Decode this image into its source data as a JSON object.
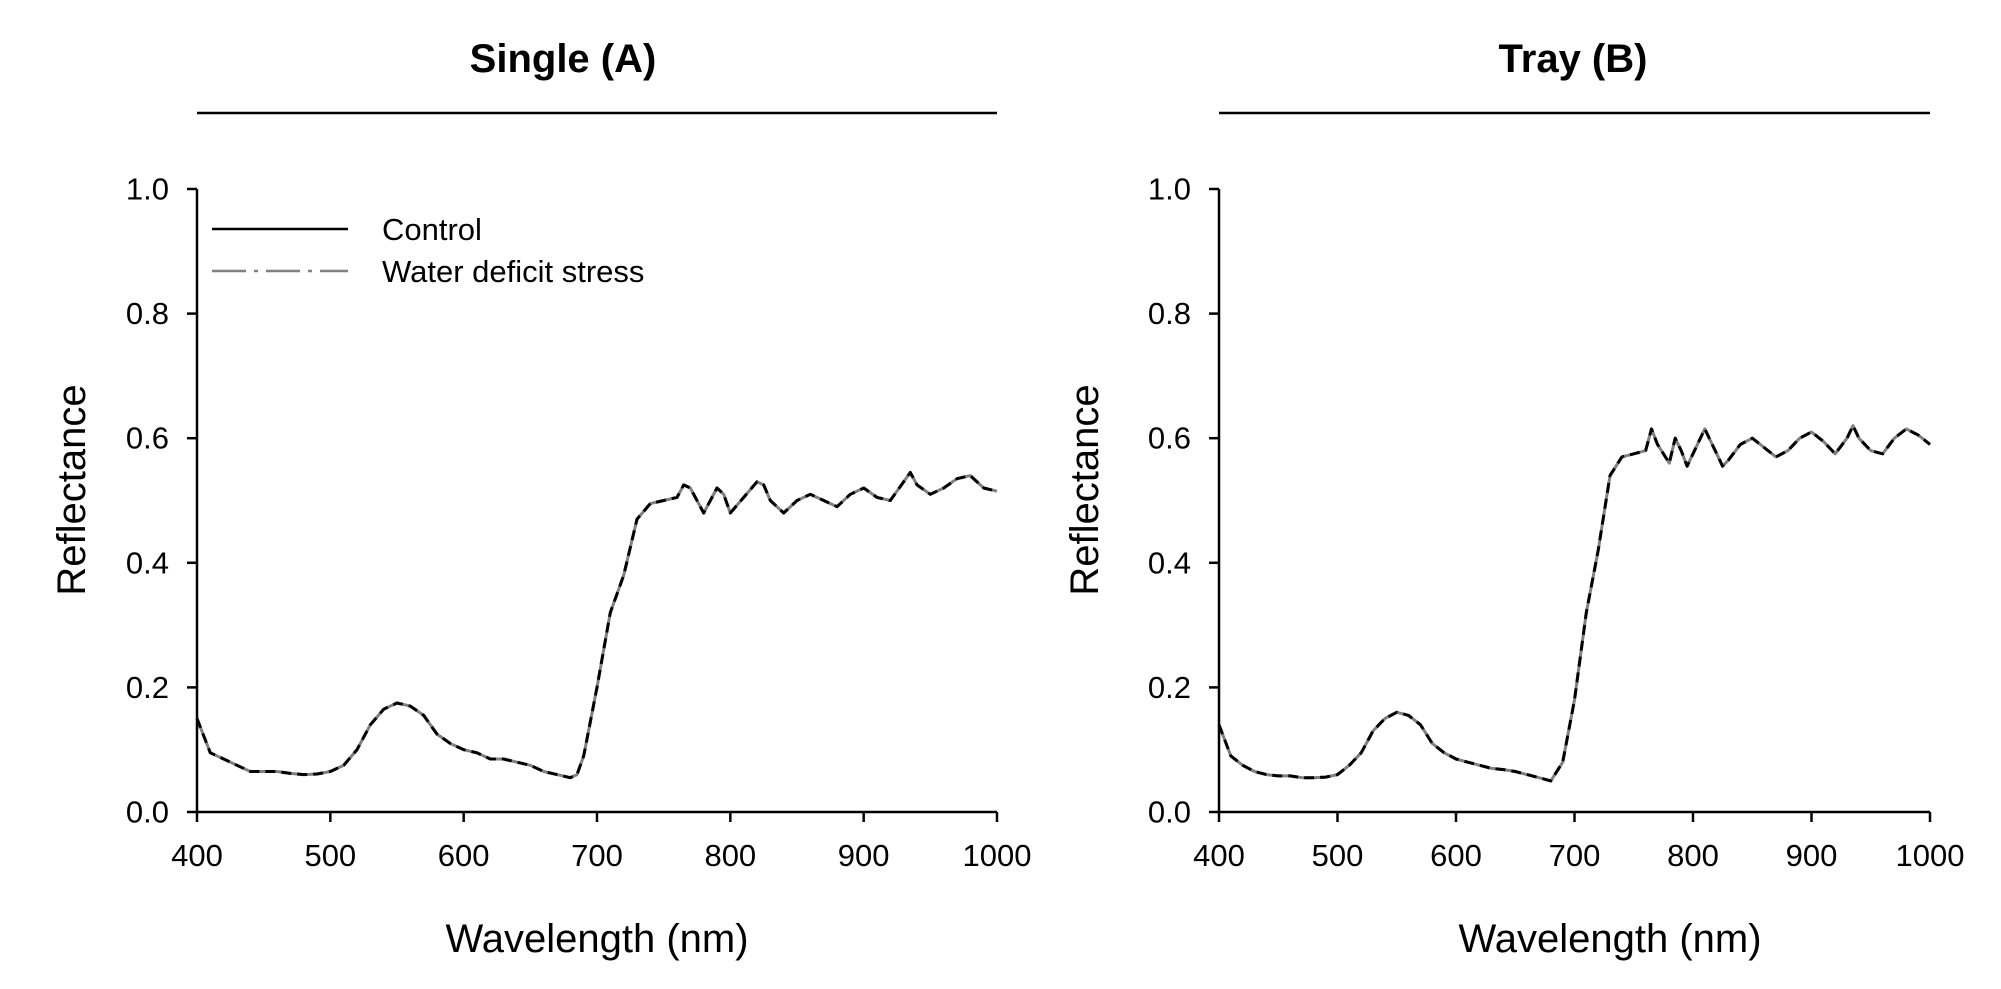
{
  "chart_data": [
    {
      "type": "line",
      "title": "Single (A)",
      "xlabel": "Wavelength (nm)",
      "ylabel": "Reflectance",
      "xlim": [
        400,
        1000
      ],
      "ylim": [
        0.0,
        1.0
      ],
      "x_ticks": [
        "400",
        "500",
        "600",
        "700",
        "800",
        "900",
        "1000"
      ],
      "y_ticks": [
        "0.0",
        "0.2",
        "0.4",
        "0.6",
        "0.8",
        "1.0"
      ],
      "legend": {
        "position": "top-left",
        "entries": [
          "Control",
          "Water deficit stress"
        ]
      },
      "series": [
        {
          "name": "Control",
          "color": "#000000",
          "x": [
            400,
            410,
            420,
            430,
            440,
            450,
            460,
            470,
            480,
            490,
            500,
            510,
            520,
            530,
            540,
            550,
            560,
            570,
            580,
            590,
            600,
            610,
            620,
            630,
            640,
            650,
            660,
            670,
            680,
            685,
            690,
            700,
            710,
            720,
            730,
            740,
            750,
            760,
            765,
            770,
            780,
            790,
            795,
            800,
            810,
            820,
            825,
            830,
            840,
            850,
            860,
            870,
            880,
            890,
            900,
            910,
            920,
            930,
            935,
            940,
            950,
            960,
            970,
            980,
            990,
            1000
          ],
          "y": [
            0.15,
            0.095,
            0.085,
            0.075,
            0.065,
            0.065,
            0.065,
            0.062,
            0.06,
            0.061,
            0.065,
            0.075,
            0.1,
            0.14,
            0.165,
            0.175,
            0.17,
            0.155,
            0.125,
            0.11,
            0.1,
            0.095,
            0.085,
            0.085,
            0.08,
            0.075,
            0.065,
            0.06,
            0.055,
            0.06,
            0.09,
            0.2,
            0.32,
            0.38,
            0.47,
            0.495,
            0.5,
            0.505,
            0.525,
            0.52,
            0.48,
            0.52,
            0.51,
            0.48,
            0.505,
            0.53,
            0.525,
            0.5,
            0.48,
            0.5,
            0.51,
            0.5,
            0.49,
            0.51,
            0.52,
            0.505,
            0.5,
            0.53,
            0.545,
            0.525,
            0.51,
            0.52,
            0.535,
            0.54,
            0.52,
            0.515
          ]
        },
        {
          "name": "Water deficit stress",
          "color": "#808080",
          "x": [
            400,
            410,
            420,
            430,
            440,
            450,
            460,
            470,
            480,
            490,
            500,
            510,
            520,
            530,
            540,
            550,
            560,
            570,
            580,
            590,
            600,
            610,
            620,
            630,
            640,
            650,
            660,
            670,
            680,
            685,
            690,
            700,
            710,
            720,
            730,
            740,
            750,
            760,
            765,
            770,
            780,
            790,
            795,
            800,
            810,
            820,
            825,
            830,
            840,
            850,
            860,
            870,
            880,
            890,
            900,
            910,
            920,
            930,
            935,
            940,
            950,
            960,
            970,
            980,
            990,
            1000
          ],
          "y": [
            0.15,
            0.095,
            0.085,
            0.075,
            0.065,
            0.065,
            0.065,
            0.062,
            0.06,
            0.061,
            0.065,
            0.075,
            0.1,
            0.14,
            0.165,
            0.175,
            0.17,
            0.155,
            0.125,
            0.11,
            0.1,
            0.095,
            0.085,
            0.085,
            0.08,
            0.075,
            0.065,
            0.06,
            0.055,
            0.06,
            0.09,
            0.2,
            0.32,
            0.38,
            0.47,
            0.495,
            0.5,
            0.505,
            0.525,
            0.52,
            0.48,
            0.52,
            0.51,
            0.48,
            0.505,
            0.53,
            0.525,
            0.5,
            0.48,
            0.5,
            0.51,
            0.5,
            0.49,
            0.51,
            0.52,
            0.505,
            0.5,
            0.53,
            0.545,
            0.525,
            0.51,
            0.52,
            0.535,
            0.54,
            0.52,
            0.515
          ]
        }
      ]
    },
    {
      "type": "line",
      "title": "Tray (B)",
      "xlabel": "Wavelength (nm)",
      "ylabel": "Reflectance",
      "xlim": [
        400,
        1000
      ],
      "ylim": [
        0.0,
        1.0
      ],
      "x_ticks": [
        "400",
        "500",
        "600",
        "700",
        "800",
        "900",
        "1000"
      ],
      "y_ticks": [
        "0.0",
        "0.2",
        "0.4",
        "0.6",
        "0.8",
        "1.0"
      ],
      "legend": null,
      "series": [
        {
          "name": "Control",
          "color": "#000000",
          "x": [
            400,
            410,
            420,
            430,
            440,
            450,
            460,
            470,
            480,
            490,
            500,
            510,
            520,
            530,
            540,
            550,
            560,
            570,
            580,
            590,
            600,
            610,
            620,
            630,
            640,
            650,
            660,
            670,
            680,
            690,
            700,
            710,
            720,
            730,
            740,
            750,
            760,
            765,
            770,
            780,
            785,
            790,
            795,
            800,
            810,
            820,
            825,
            830,
            840,
            850,
            860,
            870,
            880,
            890,
            900,
            910,
            920,
            930,
            935,
            940,
            950,
            960,
            970,
            980,
            990,
            1000
          ],
          "y": [
            0.14,
            0.09,
            0.075,
            0.065,
            0.06,
            0.058,
            0.058,
            0.055,
            0.055,
            0.056,
            0.06,
            0.075,
            0.095,
            0.13,
            0.15,
            0.16,
            0.155,
            0.14,
            0.11,
            0.095,
            0.085,
            0.08,
            0.075,
            0.07,
            0.068,
            0.065,
            0.06,
            0.055,
            0.05,
            0.08,
            0.18,
            0.32,
            0.42,
            0.54,
            0.57,
            0.575,
            0.58,
            0.615,
            0.59,
            0.56,
            0.6,
            0.58,
            0.555,
            0.575,
            0.615,
            0.575,
            0.555,
            0.565,
            0.59,
            0.6,
            0.585,
            0.57,
            0.58,
            0.6,
            0.61,
            0.595,
            0.575,
            0.6,
            0.62,
            0.6,
            0.58,
            0.575,
            0.6,
            0.615,
            0.605,
            0.59
          ]
        },
        {
          "name": "Water deficit stress",
          "color": "#808080",
          "x": [
            400,
            410,
            420,
            430,
            440,
            450,
            460,
            470,
            480,
            490,
            500,
            510,
            520,
            530,
            540,
            550,
            560,
            570,
            580,
            590,
            600,
            610,
            620,
            630,
            640,
            650,
            660,
            670,
            680,
            690,
            700,
            710,
            720,
            730,
            740,
            750,
            760,
            765,
            770,
            780,
            785,
            790,
            795,
            800,
            810,
            820,
            825,
            830,
            840,
            850,
            860,
            870,
            880,
            890,
            900,
            910,
            920,
            930,
            935,
            940,
            950,
            960,
            970,
            980,
            990,
            1000
          ],
          "y": [
            0.14,
            0.09,
            0.075,
            0.065,
            0.06,
            0.058,
            0.058,
            0.055,
            0.055,
            0.056,
            0.06,
            0.075,
            0.095,
            0.13,
            0.15,
            0.16,
            0.155,
            0.14,
            0.11,
            0.095,
            0.085,
            0.08,
            0.075,
            0.07,
            0.068,
            0.065,
            0.06,
            0.055,
            0.05,
            0.08,
            0.18,
            0.32,
            0.42,
            0.54,
            0.57,
            0.575,
            0.58,
            0.615,
            0.59,
            0.56,
            0.6,
            0.58,
            0.555,
            0.575,
            0.615,
            0.575,
            0.555,
            0.565,
            0.59,
            0.6,
            0.585,
            0.57,
            0.58,
            0.6,
            0.61,
            0.595,
            0.575,
            0.6,
            0.62,
            0.6,
            0.58,
            0.575,
            0.6,
            0.615,
            0.605,
            0.59
          ]
        }
      ]
    }
  ]
}
